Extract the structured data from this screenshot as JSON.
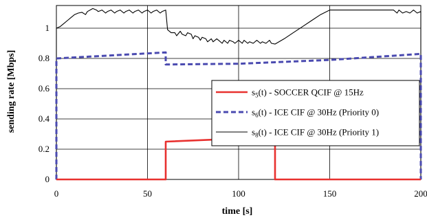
{
  "chart_data": {
    "type": "line",
    "xlabel": "time [s]",
    "ylabel": "sending rate [Mbps]",
    "xlim": [
      0,
      200
    ],
    "ylim": [
      0,
      1.15
    ],
    "x_ticks": [
      "0",
      "50",
      "100",
      "150",
      "200"
    ],
    "y_ticks": [
      "0",
      "0.2",
      "0.4",
      "0.6",
      "0.8",
      "1"
    ],
    "grid": true,
    "legend_position": "right",
    "series": [
      {
        "name": "s5(t) - SOCCER QCIF @ 15Hz",
        "legend_main": "s",
        "legend_sub": "5",
        "legend_rest": "(t) - SOCCER QCIF @ 15Hz",
        "color": "#e8312f",
        "style": "solid-thick",
        "points": [
          [
            0,
            0
          ],
          [
            60,
            0
          ],
          [
            60,
            0.25
          ],
          [
            120,
            0.28
          ],
          [
            120,
            0
          ],
          [
            200,
            0
          ]
        ]
      },
      {
        "name": "s6(t) - ICE CIF @ 30Hz (Priority 0)",
        "legend_main": "s",
        "legend_sub": "6",
        "legend_rest": "(t) - ICE CIF @ 30Hz (Priority 0)",
        "color": "#4a4ab0",
        "style": "dashed",
        "points": [
          [
            0,
            0
          ],
          [
            0,
            0.8
          ],
          [
            60,
            0.84
          ],
          [
            60,
            0.76
          ],
          [
            100,
            0.765
          ],
          [
            150,
            0.79
          ],
          [
            200,
            0.83
          ],
          [
            200,
            0
          ]
        ]
      },
      {
        "name": "s8(t) - ICE CIF @ 30Hz (Priority 1)",
        "legend_main": "s",
        "legend_sub": "8",
        "legend_rest": "(t) - ICE CIF @ 30Hz (Priority 1)",
        "color": "#000000",
        "style": "solid-thin",
        "points": [
          [
            0,
            0
          ],
          [
            0,
            1.0
          ],
          [
            2,
            1.01
          ],
          [
            4,
            1.03
          ],
          [
            6,
            1.05
          ],
          [
            8,
            1.07
          ],
          [
            10,
            1.09
          ],
          [
            12,
            1.1
          ],
          [
            14,
            1.105
          ],
          [
            16,
            1.09
          ],
          [
            17,
            1.11
          ],
          [
            20,
            1.13
          ],
          [
            22,
            1.12
          ],
          [
            23,
            1.11
          ],
          [
            25,
            1.12
          ],
          [
            27,
            1.1
          ],
          [
            28,
            1.11
          ],
          [
            30,
            1.12
          ],
          [
            32,
            1.1
          ],
          [
            33,
            1.11
          ],
          [
            35,
            1.12
          ],
          [
            37,
            1.1
          ],
          [
            38,
            1.11
          ],
          [
            40,
            1.12
          ],
          [
            42,
            1.1
          ],
          [
            43,
            1.11
          ],
          [
            45,
            1.12
          ],
          [
            47,
            1.1
          ],
          [
            48,
            1.11
          ],
          [
            50,
            1.12
          ],
          [
            52,
            1.1
          ],
          [
            53,
            1.11
          ],
          [
            55,
            1.12
          ],
          [
            57,
            1.1
          ],
          [
            58,
            1.11
          ],
          [
            60,
            1.12
          ],
          [
            61,
            0.99
          ],
          [
            62,
            0.98
          ],
          [
            63,
            0.97
          ],
          [
            65,
            0.97
          ],
          [
            66,
            0.95
          ],
          [
            68,
            0.98
          ],
          [
            69,
            0.96
          ],
          [
            71,
            0.95
          ],
          [
            72,
            0.97
          ],
          [
            74,
            0.96
          ],
          [
            75,
            0.93
          ],
          [
            76,
            0.95
          ],
          [
            78,
            0.94
          ],
          [
            79,
            0.92
          ],
          [
            80,
            0.94
          ],
          [
            82,
            0.93
          ],
          [
            83,
            0.91
          ],
          [
            85,
            0.93
          ],
          [
            86,
            0.91
          ],
          [
            88,
            0.93
          ],
          [
            89,
            0.92
          ],
          [
            91,
            0.9
          ],
          [
            92,
            0.92
          ],
          [
            94,
            0.9
          ],
          [
            95,
            0.92
          ],
          [
            97,
            0.91
          ],
          [
            98,
            0.9
          ],
          [
            100,
            0.92
          ],
          [
            102,
            0.9
          ],
          [
            103,
            0.92
          ],
          [
            105,
            0.9
          ],
          [
            106,
            0.91
          ],
          [
            108,
            0.9
          ],
          [
            110,
            0.92
          ],
          [
            112,
            0.9
          ],
          [
            113,
            0.91
          ],
          [
            115,
            0.9
          ],
          [
            117,
            0.92
          ],
          [
            118,
            0.9
          ],
          [
            120,
            0.895
          ],
          [
            125,
            0.93
          ],
          [
            130,
            0.97
          ],
          [
            135,
            1.01
          ],
          [
            140,
            1.05
          ],
          [
            145,
            1.09
          ],
          [
            150,
            1.12
          ],
          [
            160,
            1.12
          ],
          [
            170,
            1.12
          ],
          [
            180,
            1.12
          ],
          [
            185,
            1.12
          ],
          [
            187,
            1.1
          ],
          [
            188,
            1.12
          ],
          [
            190,
            1.1
          ],
          [
            192,
            1.11
          ],
          [
            194,
            1.1
          ],
          [
            196,
            1.12
          ],
          [
            198,
            1.1
          ],
          [
            200,
            1.11
          ],
          [
            200,
            0
          ]
        ]
      }
    ]
  }
}
